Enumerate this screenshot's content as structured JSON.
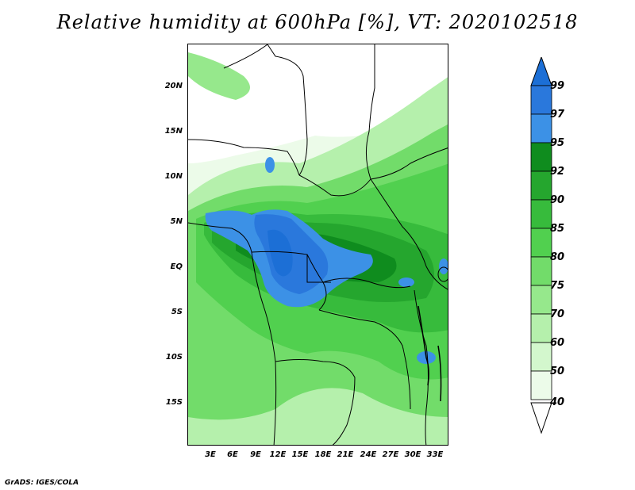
{
  "title": "Relative humidity at 600hPa [%], VT: 2020102518",
  "credit": "GrADS: IGES/COLA",
  "map": {
    "lat_labels": [
      "20N",
      "15N",
      "10N",
      "5N",
      "EQ",
      "5S",
      "10S",
      "15S"
    ],
    "lon_labels": [
      "3E",
      "6E",
      "9E",
      "12E",
      "15E",
      "18E",
      "21E",
      "24E",
      "27E",
      "30E",
      "33E"
    ]
  },
  "colorbar": {
    "labels": [
      "99",
      "97",
      "95",
      "92",
      "90",
      "85",
      "80",
      "75",
      "70",
      "60",
      "50",
      "40"
    ],
    "colors": {
      "over99": "#1c6fd6",
      "97_99": "#2a78dc",
      "95_97": "#3c91e6",
      "92_95": "#0f8c1e",
      "90_92": "#25a62e",
      "85_90": "#37bb3c",
      "80_85": "#51d04f",
      "75_80": "#72dc6a",
      "70_75": "#96e88c",
      "60_70": "#b5f0ac",
      "50_60": "#d3f7cd",
      "40_50": "#ecfbe9",
      "under40": "#ffffff"
    }
  }
}
